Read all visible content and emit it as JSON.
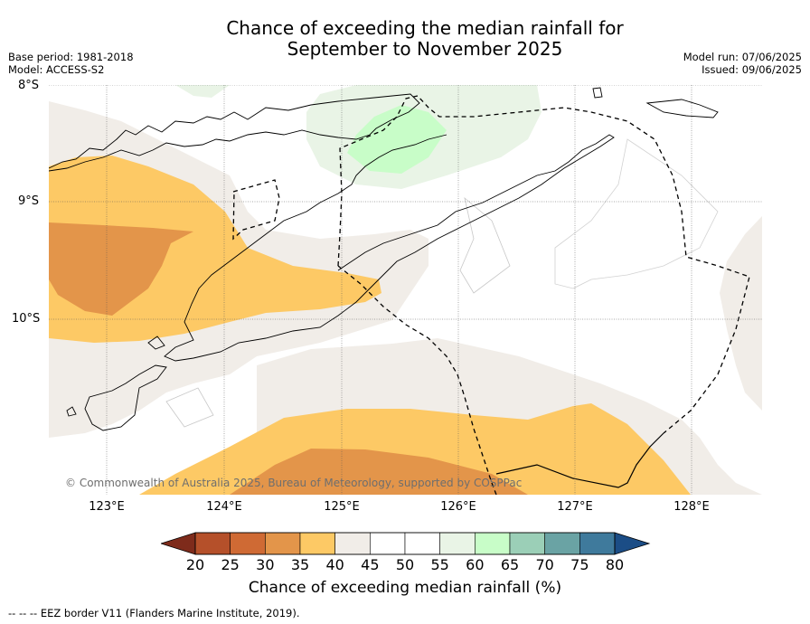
{
  "title_line1": "Chance of exceeding the median rainfall for",
  "title_line2": "September to November 2025",
  "base_period": "Base period: 1981-2018",
  "model": "Model: ACCESS-S2",
  "model_run": "Model run: 07/06/2025",
  "issued": "Issued: 09/06/2025",
  "lat_labels": [
    "8°S",
    "9°S",
    "10°S"
  ],
  "lon_labels": [
    "123°E",
    "124°E",
    "125°E",
    "126°E",
    "127°E",
    "128°E"
  ],
  "credit": "© Commonwealth of Australia 2025, Bureau of Meteorology, supported by COSPPac",
  "colorbar": {
    "ticks": [
      "20",
      "25",
      "30",
      "35",
      "40",
      "45",
      "50",
      "55",
      "60",
      "65",
      "70",
      "75",
      "80"
    ],
    "colors": [
      "#7e2b1b",
      "#b5502a",
      "#cf6a34",
      "#e3954a",
      "#fdc965",
      "#f1ede8",
      "#ffffff",
      "#ffffff",
      "#e9f4e6",
      "#c8fdc8",
      "#9bcfb7",
      "#6aa3a4",
      "#3f7a9c",
      "#1b4d86"
    ],
    "label": "Chance of exceeding median rainfall (%)"
  },
  "footnote": "--  --  -- EEZ border V11 (Flanders Marine Institute, 2019)."
}
